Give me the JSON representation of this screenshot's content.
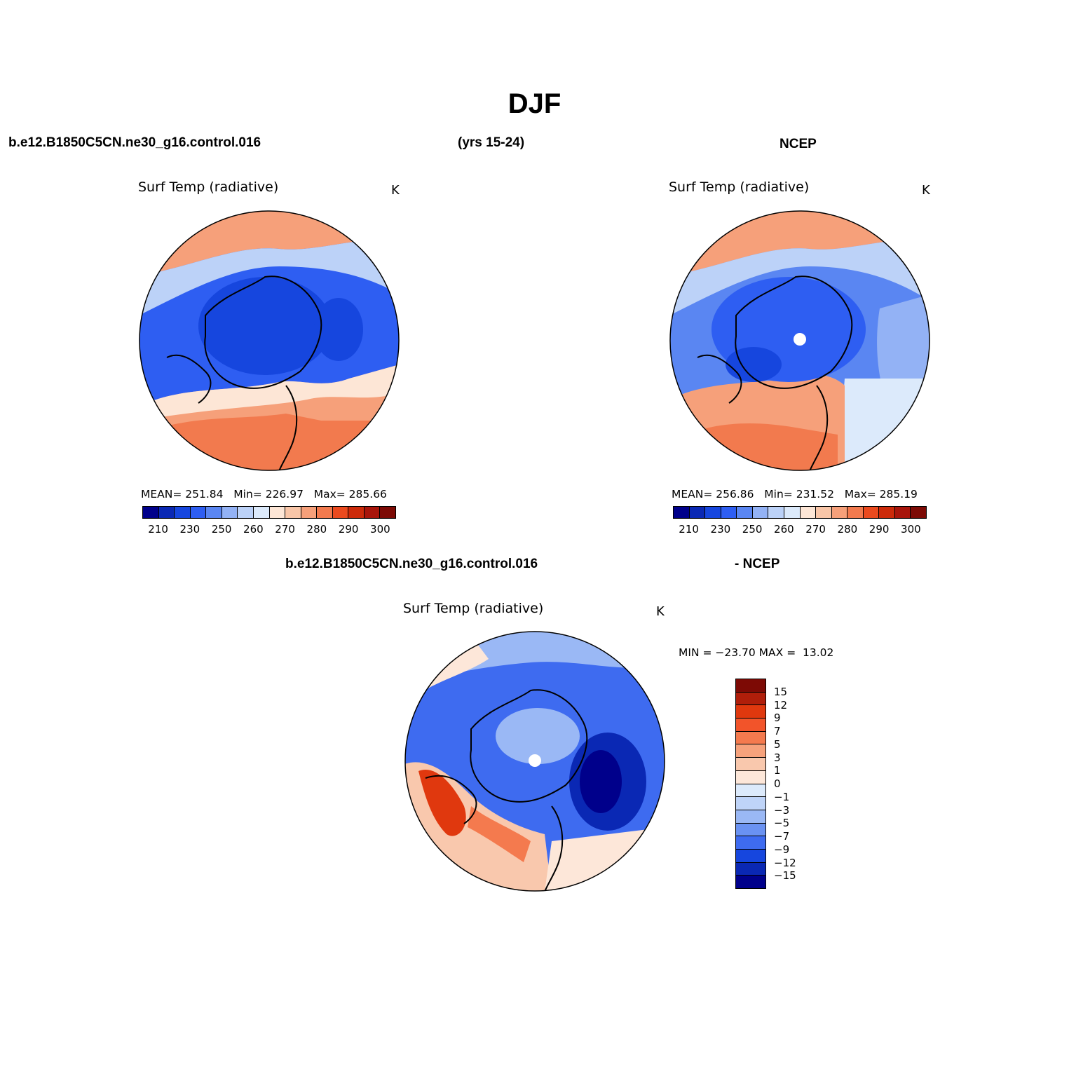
{
  "figure": {
    "title": "DJF",
    "case_name": "b.e12.B1850C5CN.ne30_g16.control.016",
    "years": "(yrs 15-24)",
    "obs_name": "NCEP",
    "diff_case": "b.e12.B1850C5CN.ne30_g16.control.016",
    "diff_obs": "- NCEP"
  },
  "colors": {
    "abs_scale": [
      "#00008B",
      "#0A28B4",
      "#1646DE",
      "#2E5EF2",
      "#5A86F2",
      "#93B2F5",
      "#BCD2F8",
      "#DCEAFB",
      "#FDE6D6",
      "#F9C6A8",
      "#F6A07A",
      "#F27A4E",
      "#EB4A1E",
      "#CC2A0A",
      "#A8150B",
      "#7D0A05"
    ],
    "diff_scale": [
      "#7D0A05",
      "#B01E0A",
      "#E0380E",
      "#F2542A",
      "#F47A4E",
      "#F6A27C",
      "#F9C8AD",
      "#FDE7D9",
      "#DCEAFB",
      "#BFD4F8",
      "#9AB8F5",
      "#6A92F2",
      "#3E6BF0",
      "#1646DE",
      "#0A28B4",
      "#00008B"
    ],
    "land_outline": "#000000"
  },
  "panels": [
    {
      "id": "model",
      "subtitle": "Surf Temp (radiative)",
      "units": "K",
      "stats": "MEAN= 251.84   Min= 226.97   Max= 285.66",
      "colorbar_ticks": [
        "210",
        "230",
        "250",
        "260",
        "270",
        "280",
        "290",
        "300"
      ],
      "field_min": 226.97,
      "field_max": 285.66,
      "field_mean": 251.84
    },
    {
      "id": "obs",
      "subtitle": "Surf Temp (radiative)",
      "units": "K",
      "stats": "MEAN= 256.86   Min= 231.52   Max= 285.19",
      "colorbar_ticks": [
        "210",
        "230",
        "250",
        "260",
        "270",
        "280",
        "290",
        "300"
      ],
      "field_min": 231.52,
      "field_max": 285.19,
      "field_mean": 256.86
    },
    {
      "id": "diff",
      "subtitle": "Surf Temp (radiative)",
      "units": "K",
      "stats": "MIN = −23.70 MAX =  13.02",
      "colorbar_ticks": [
        "15",
        "12",
        "9",
        "7",
        "5",
        "3",
        "1",
        "0",
        "−1",
        "−3",
        "−5",
        "−7",
        "−9",
        "−12",
        "−15"
      ],
      "field_min": -23.7,
      "field_max": 13.02
    }
  ]
}
